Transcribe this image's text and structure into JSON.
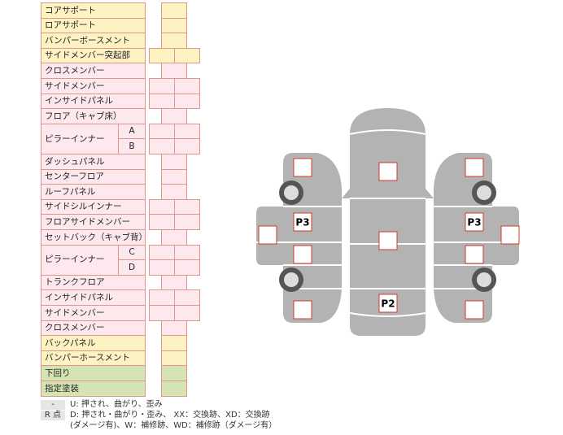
{
  "table": {
    "rows": [
      {
        "label": "コアサポート"
      },
      {
        "label": "ロアサポート"
      },
      {
        "label": "バンパーボースメント"
      },
      {
        "label": "サイドメンバー突起部"
      },
      {
        "label": "クロスメンバー"
      },
      {
        "label": "サイドメンバー"
      },
      {
        "label": "インサイドパネル"
      },
      {
        "label": "フロア（キャブ床）"
      },
      {
        "label": "ピラーインナー",
        "sub": [
          "A",
          "B"
        ]
      },
      {
        "label": "ダッシュパネル"
      },
      {
        "label": "センターフロア"
      },
      {
        "label": "ルーフパネル"
      },
      {
        "label": "サイドシルインナー"
      },
      {
        "label": "フロアサイドメンバー"
      },
      {
        "label": "セットバック（キャブ背）"
      },
      {
        "label": "ピラーインナー",
        "sub": [
          "C",
          "D"
        ]
      },
      {
        "label": "トランクフロア"
      },
      {
        "label": "インサイドパネル"
      },
      {
        "label": "サイドメンバー"
      },
      {
        "label": "クロスメンバー"
      },
      {
        "label": "バックパネル"
      },
      {
        "label": "バンパーホースメント"
      },
      {
        "label": "下回り"
      },
      {
        "label": "指定塗装"
      }
    ]
  },
  "legend": [
    {
      "key": "-",
      "text": "U: 押され、曲がり、歪み"
    },
    {
      "key": "R 点",
      "text": "D: 押され・曲がり・歪み、 XX：交換跡、XD：交換跡"
    },
    {
      "text": "(ダメージ有)、W：補修跡、WD：補修跡（ダメージ有）"
    }
  ],
  "diagram": {
    "labels": [
      "P3",
      "P3",
      "P2"
    ]
  }
}
